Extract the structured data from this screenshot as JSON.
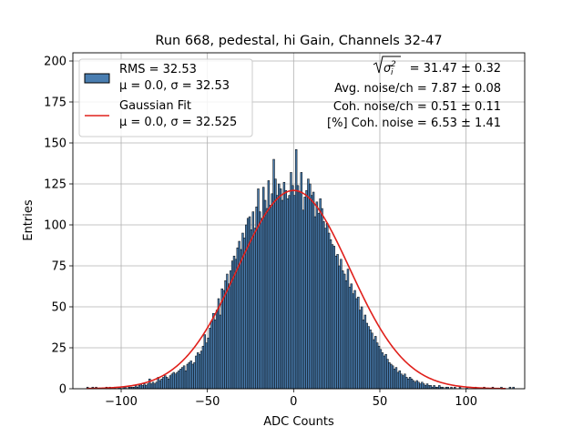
{
  "chart_data": {
    "type": "bar",
    "title": "Run 668, pedestal, hi Gain, Channels 32-47",
    "xlabel": "ADC Counts",
    "ylabel": "Entries",
    "xlim": [
      -128,
      134
    ],
    "ylim": [
      0,
      205
    ],
    "xticks": [
      -100,
      -50,
      0,
      50,
      100
    ],
    "xtick_labels": [
      "−100",
      "−50",
      "0",
      "50",
      "100"
    ],
    "yticks": [
      0,
      25,
      50,
      75,
      100,
      125,
      150,
      175,
      200
    ],
    "ytick_labels": [
      "0",
      "25",
      "50",
      "75",
      "100",
      "125",
      "150",
      "175",
      "200"
    ],
    "grid": true,
    "bin_width": 1,
    "bar_color": "#4a7eb1",
    "fit_color": "#e0201b",
    "histogram": {
      "x_start": -120,
      "x_end": 123,
      "counts": [
        1,
        0,
        0,
        1,
        0,
        1,
        0,
        0,
        0,
        0,
        0,
        1,
        0,
        1,
        0,
        0,
        1,
        0,
        1,
        1,
        0,
        1,
        1,
        0,
        1,
        1,
        1,
        1,
        2,
        1,
        2,
        3,
        2,
        3,
        2,
        3,
        6,
        3,
        4,
        3,
        4,
        7,
        5,
        6,
        7,
        8,
        7,
        6,
        8,
        9,
        10,
        9,
        10,
        11,
        12,
        13,
        14,
        11,
        15,
        16,
        17,
        15,
        16,
        20,
        22,
        21,
        23,
        26,
        33,
        28,
        31,
        37,
        41,
        46,
        42,
        48,
        55,
        45,
        61,
        60,
        66,
        70,
        64,
        72,
        78,
        81,
        79,
        86,
        90,
        85,
        95,
        92,
        100,
        104,
        105,
        97,
        108,
        98,
        111,
        122,
        108,
        104,
        123,
        115,
        110,
        127,
        112,
        119,
        140,
        128,
        118,
        125,
        122,
        115,
        126,
        121,
        116,
        118,
        132,
        124,
        118,
        146,
        124,
        120,
        132,
        109,
        117,
        121,
        128,
        125,
        118,
        120,
        105,
        114,
        107,
        116,
        110,
        102,
        98,
        101,
        95,
        91,
        88,
        87,
        81,
        82,
        75,
        79,
        72,
        70,
        66,
        73,
        62,
        64,
        58,
        60,
        55,
        56,
        48,
        50,
        42,
        45,
        40,
        38,
        36,
        34,
        30,
        32,
        28,
        26,
        24,
        22,
        20,
        21,
        18,
        16,
        15,
        14,
        12,
        13,
        10,
        11,
        9,
        8,
        9,
        7,
        6,
        7,
        6,
        5,
        4,
        5,
        4,
        3,
        4,
        3,
        2,
        3,
        2,
        2,
        1,
        2,
        1,
        1,
        2,
        1,
        1,
        0,
        1,
        1,
        0,
        1,
        0,
        1,
        0,
        0,
        1,
        0,
        0,
        0,
        1,
        0,
        0,
        0,
        0,
        1,
        0,
        0,
        0,
        0,
        1,
        0,
        0,
        0,
        0,
        1,
        0,
        0,
        0,
        0,
        1,
        0,
        0,
        0,
        0,
        1,
        0,
        1,
        0,
        0
      ]
    },
    "gaussian_fit": {
      "mu": 0.0,
      "sigma": 32.525,
      "amplitude": 121
    },
    "legend": {
      "position": "upper-left",
      "entries": [
        {
          "line1": "RMS = 32.53",
          "line2": "μ = 0.0, σ = 32.53"
        },
        {
          "line1": "Gaussian Fit",
          "line2": "μ = 0.0, σ = 32.525"
        }
      ]
    },
    "annotations": {
      "sigma_label": "= 31.47 ± 0.32",
      "avg_noise": "Avg. noise/ch = 7.87 ± 0.08",
      "coh_noise": "Coh. noise/ch = 0.51 ± 0.11",
      "coh_pct": "[%] Coh. noise = 6.53 ± 1.41"
    }
  }
}
